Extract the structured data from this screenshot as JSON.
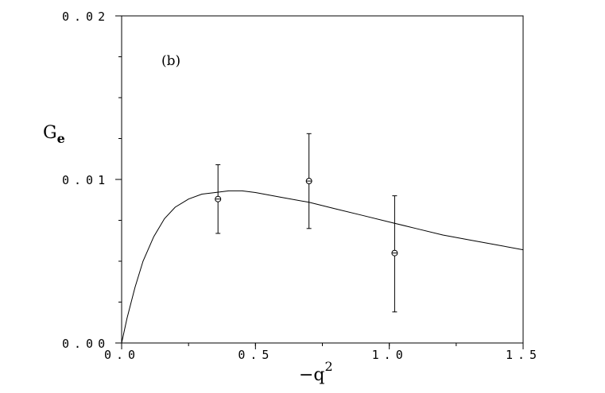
{
  "chart_data": {
    "type": "scatter",
    "panel_label": "(b)",
    "xlabel": "−q",
    "xlabel_sup": "2",
    "ylabel": "G",
    "ylabel_sub": "e",
    "xlim": [
      0.0,
      1.5
    ],
    "ylim": [
      0.0,
      0.02
    ],
    "x_ticks": [
      {
        "value": 0.0,
        "label": "0.0"
      },
      {
        "value": 0.5,
        "label": "0.5"
      },
      {
        "value": 1.0,
        "label": "1.0"
      },
      {
        "value": 1.5,
        "label": "1.5"
      }
    ],
    "y_ticks": [
      {
        "value": 0.0,
        "label": "0.00"
      },
      {
        "value": 0.01,
        "label": "0.01"
      },
      {
        "value": 0.02,
        "label": "0.02"
      }
    ],
    "grid": false,
    "data_points": [
      {
        "x": 0.36,
        "y": 0.0088,
        "y_low": 0.0067,
        "y_high": 0.0109
      },
      {
        "x": 0.7,
        "y": 0.0099,
        "y_low": 0.007,
        "y_high": 0.0128
      },
      {
        "x": 1.02,
        "y": 0.0055,
        "y_low": 0.0019,
        "y_high": 0.009
      }
    ],
    "curve": {
      "x": [
        0.0,
        0.02,
        0.05,
        0.08,
        0.12,
        0.16,
        0.2,
        0.25,
        0.3,
        0.35,
        0.4,
        0.45,
        0.5,
        0.6,
        0.7,
        0.8,
        0.9,
        1.0,
        1.1,
        1.2,
        1.3,
        1.4,
        1.5
      ],
      "y": [
        0.0,
        0.0015,
        0.0034,
        0.005,
        0.0065,
        0.0076,
        0.0083,
        0.0088,
        0.0091,
        0.0092,
        0.0093,
        0.0093,
        0.0092,
        0.0089,
        0.0086,
        0.0082,
        0.0078,
        0.0074,
        0.007,
        0.0066,
        0.0063,
        0.006,
        0.0057
      ]
    }
  }
}
